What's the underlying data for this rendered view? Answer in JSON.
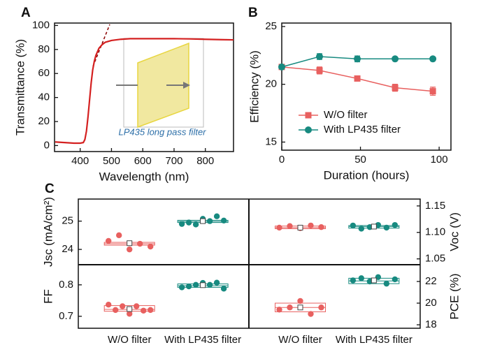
{
  "chart_data": [
    {
      "type": "line",
      "panel": "A",
      "xlabel": "Wavelength (nm)",
      "ylabel": "Transmittance (%)",
      "annotation": "LP435 long pass filter",
      "x": [
        320,
        350,
        380,
        400,
        410,
        415,
        420,
        425,
        430,
        435,
        440,
        445,
        450,
        460,
        470,
        480,
        500,
        530,
        560,
        600,
        650,
        700,
        750,
        800,
        850,
        890
      ],
      "series": [
        {
          "color": "#d42020",
          "values": [
            3,
            2.5,
            2,
            2,
            2.5,
            5,
            12,
            24,
            38,
            52,
            63,
            70,
            75,
            81,
            84,
            86,
            87.5,
            88.5,
            89,
            89,
            89,
            89,
            88.8,
            88.5,
            88.2,
            88
          ]
        }
      ],
      "xlim": [
        318,
        890
      ],
      "xticks": [
        400,
        500,
        600,
        700,
        800
      ],
      "ylim": [
        -5,
        102
      ],
      "yticks": [
        0,
        20,
        40,
        60,
        80,
        100
      ]
    },
    {
      "type": "errorline",
      "panel": "B",
      "xlabel": "Duration (hours)",
      "ylabel": "Efficiency (%)",
      "legend": "lower-left",
      "x": [
        0,
        24,
        48,
        72,
        96
      ],
      "series": [
        {
          "name": "W/O filter",
          "color": "#e8605f",
          "marker": "square",
          "values": [
            21.5,
            21.2,
            20.5,
            19.7,
            19.4
          ],
          "errors": [
            0,
            0.3,
            0.2,
            0.3,
            0.35
          ]
        },
        {
          "name": "With LP435 filter",
          "color": "#178a80",
          "marker": "circle",
          "values": [
            21.5,
            22.4,
            22.2,
            22.2,
            22.2
          ],
          "errors": [
            0,
            0.25,
            0.25,
            0.12,
            0.15
          ]
        }
      ],
      "xlim": [
        0,
        107.5
      ],
      "xticks": [
        0,
        50,
        100
      ],
      "ylim": [
        14.3,
        25.3
      ],
      "yticks": [
        15,
        20,
        25
      ]
    },
    {
      "type": "box",
      "panel": "C",
      "ylabel": "Jsc (mA/cm²)",
      "side": "left",
      "ylim": [
        23.46,
        25.78
      ],
      "yticks": [
        24,
        25
      ],
      "groups": [
        {
          "color": "#e8605f",
          "points": [
            24.3,
            24.5,
            24.0,
            24.2,
            24.1
          ],
          "box": [
            24.15,
            24.2,
            24.25
          ],
          "mean": 24.22
        },
        {
          "color": "#178a80",
          "points": [
            24.9,
            24.95,
            24.88,
            25.08,
            25.0,
            25.17,
            25.02
          ],
          "box": [
            24.95,
            24.99,
            25.03
          ],
          "mean": 25.0
        }
      ]
    },
    {
      "type": "box",
      "ylabel": "Voc (V)",
      "side": "right",
      "ylim": [
        1.039,
        1.163
      ],
      "yticks": [
        {
          "value": 1.05,
          "label": "1.05"
        },
        {
          "value": 1.1,
          "label": "1.10"
        },
        {
          "value": 1.15,
          "label": "1.15"
        }
      ],
      "groups": [
        {
          "color": "#e8605f",
          "points": [
            1.109,
            1.112,
            1.108,
            1.113,
            1.11
          ],
          "box": [
            1.107,
            1.109,
            1.112
          ],
          "mean": 1.109
        },
        {
          "color": "#178a80",
          "points": [
            1.113,
            1.107,
            1.11,
            1.114,
            1.109,
            1.114
          ],
          "box": [
            1.108,
            1.111,
            1.113
          ],
          "mean": 1.111
        }
      ]
    },
    {
      "type": "box",
      "ylabel": "FF",
      "side": "left",
      "ylim": [
        0.662,
        0.864
      ],
      "yticks": [
        0.7,
        0.8
      ],
      "categories": [
        "W/O filter",
        "With LP435 filter"
      ],
      "groups": [
        {
          "color": "#e8605f",
          "points": [
            0.737,
            0.72,
            0.732,
            0.708,
            0.732,
            0.718,
            0.72
          ],
          "box": [
            0.716,
            0.722,
            0.734
          ],
          "mean": 0.723
        },
        {
          "color": "#178a80",
          "points": [
            0.792,
            0.795,
            0.8,
            0.806,
            0.8,
            0.807,
            0.788
          ],
          "box": [
            0.792,
            0.797,
            0.803
          ],
          "mean": 0.799
        }
      ]
    },
    {
      "type": "box",
      "ylabel": "PCE (%)",
      "side": "right",
      "ylim": [
        17.68,
        23.55
      ],
      "yticks": [
        18,
        20,
        22
      ],
      "categories": [
        "W/O filter",
        "With LP435 filter"
      ],
      "groups": [
        {
          "color": "#e8605f",
          "points": [
            19.4,
            19.6,
            20.2,
            19.0,
            19.6
          ],
          "box": [
            19.2,
            19.6,
            20.0
          ],
          "mean": 19.6
        },
        {
          "color": "#178a80",
          "points": [
            22.1,
            22.3,
            22.0,
            22.4,
            21.8,
            22.2
          ],
          "box": [
            21.8,
            22.05,
            22.3
          ],
          "mean": 22.1
        }
      ]
    }
  ]
}
